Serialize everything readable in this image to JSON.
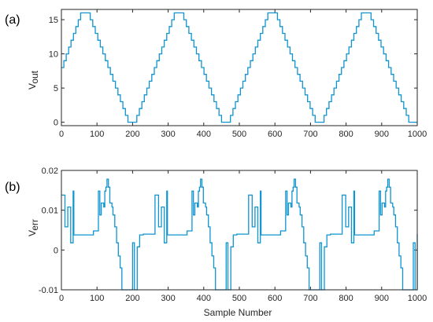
{
  "chart_data": [
    {
      "type": "line",
      "panel_label": "(a)",
      "ylabel_main": "V",
      "ylabel_sub": "out",
      "xlabel": "",
      "xlim": [
        0,
        1000
      ],
      "ylim": [
        -0.5,
        16.5
      ],
      "xticks": [
        0,
        100,
        200,
        300,
        400,
        500,
        600,
        700,
        800,
        900,
        1000
      ],
      "xtick_labels": [
        "0",
        "100",
        "200",
        "300",
        "400",
        "500",
        "600",
        "700",
        "800",
        "900",
        "1000"
      ],
      "yticks": [
        0,
        5,
        10,
        15
      ],
      "ytick_labels": [
        "0",
        "5",
        "10",
        "15"
      ],
      "grid": false,
      "color": "#0f94d2",
      "series": [
        {
          "shape": "staircase triangle wave",
          "period": 263,
          "min": 0,
          "max": 16,
          "step": 1,
          "peaks_x": [
            64,
            327,
            590,
            853
          ],
          "troughs_x": [
            196,
            459,
            722,
            985
          ],
          "x": [
            0,
            64,
            196,
            327,
            459,
            590,
            722,
            853,
            985,
            1000
          ],
          "y": [
            8,
            16,
            0,
            16,
            0,
            16,
            0,
            16,
            0,
            0
          ]
        }
      ]
    },
    {
      "type": "line",
      "panel_label": "(b)",
      "ylabel_main": "V",
      "ylabel_sub": "err",
      "xlabel": "Sample Number",
      "xlim": [
        0,
        1000
      ],
      "ylim": [
        -0.01,
        0.02
      ],
      "xticks": [
        0,
        100,
        200,
        300,
        400,
        500,
        600,
        700,
        800,
        900,
        1000
      ],
      "xtick_labels": [
        "0",
        "100",
        "200",
        "300",
        "400",
        "500",
        "600",
        "700",
        "800",
        "900",
        "1000"
      ],
      "yticks": [
        -0.01,
        0,
        0.01,
        0.02
      ],
      "ytick_labels": [
        "-0.01",
        "0",
        "0.01",
        "0.02"
      ],
      "grid": false,
      "color": "#0f94d2",
      "series": [
        {
          "period": 263,
          "x": [
            0,
            8,
            10,
            16,
            18,
            24,
            26,
            28,
            33,
            35,
            80,
            83,
            88,
            90,
            95,
            100,
            104,
            108,
            112,
            115,
            119,
            122,
            125,
            128,
            132,
            136,
            142,
            145,
            150,
            155,
            160,
            165,
            170,
            175,
            180,
            185,
            190,
            195,
            200,
            202,
            205,
            208,
            213,
            216,
            220,
            225,
            230,
            232,
            265,
            284,
            450,
            484,
            518,
            528,
            555,
            722,
            758,
            781,
            790,
            985,
            1000
          ],
          "y": [
            0.0138,
            0.0138,
            0.0058,
            0.0058,
            0.0108,
            0.0108,
            0.0018,
            0.0018,
            0.0148,
            0.0038,
            0.0038,
            0.0038,
            0.0038,
            0.0048,
            0.0048,
            0.0048,
            0.0148,
            0.0088,
            0.0118,
            0.0118,
            0.0108,
            0.0148,
            0.0158,
            0.0178,
            0.0158,
            0.0118,
            0.0108,
            0.0088,
            0.0058,
            0.0018,
            -0.0015,
            -0.0045,
            -0.01,
            -0.01,
            -0.01,
            -0.01,
            -0.01,
            -0.01,
            0.0018,
            0.0018,
            -0.01,
            -0.01,
            0.0008,
            0.0008,
            0.0038,
            0.0038,
            0.004,
            0.004,
            0.004,
            0.004,
            0.004,
            0.004,
            0.004,
            0.004,
            0.004,
            0.004,
            0.004,
            0.004,
            0.004,
            0.004,
            0.004
          ]
        }
      ]
    }
  ]
}
